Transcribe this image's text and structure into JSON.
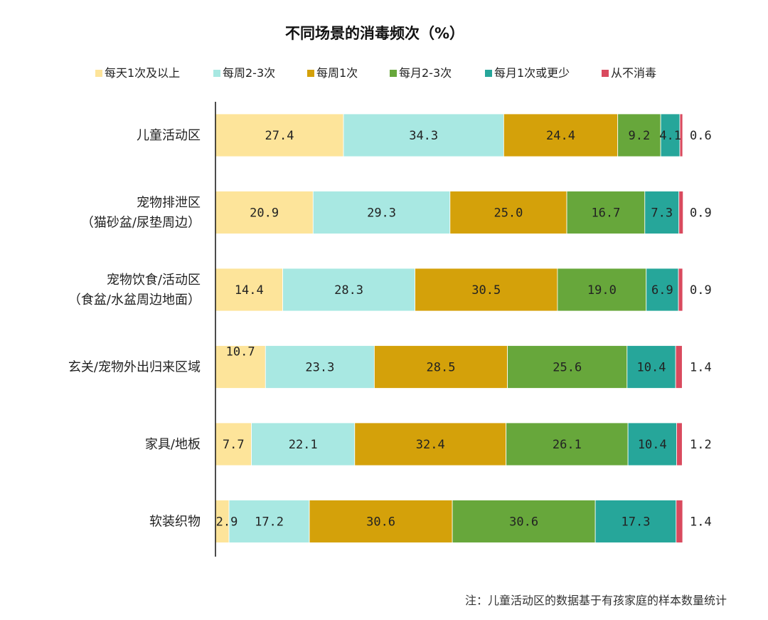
{
  "chart_data": {
    "type": "bar",
    "orientation": "horizontal",
    "stacked": true,
    "title": "不同场景的消毒频次（%）",
    "legend_position": "top",
    "grid": false,
    "xlim": [
      0,
      100
    ],
    "categories": [
      [
        "儿童活动区"
      ],
      [
        "宠物排泄区",
        "（猫砂盆/尿垫周边）"
      ],
      [
        "宠物饮食/活动区",
        "（食盆/水盆周边地面）"
      ],
      [
        "玄关/宠物外出归来区域"
      ],
      [
        "家具/地板"
      ],
      [
        "软装织物"
      ]
    ],
    "series": [
      {
        "name": "每天1次及以上",
        "color": "#FDE49A",
        "values": [
          27.4,
          20.9,
          14.4,
          10.7,
          7.7,
          2.9
        ]
      },
      {
        "name": "每周2-3次",
        "color": "#A8E8E2",
        "values": [
          34.3,
          29.3,
          28.3,
          23.3,
          22.1,
          17.2
        ]
      },
      {
        "name": "每周1次",
        "color": "#D4A10A",
        "values": [
          24.4,
          25.0,
          30.5,
          28.5,
          32.4,
          30.6
        ]
      },
      {
        "name": "每月2-3次",
        "color": "#67A73B",
        "values": [
          9.2,
          16.7,
          19.0,
          25.6,
          26.1,
          30.6
        ]
      },
      {
        "name": "每月1次或更少",
        "color": "#26A69A",
        "values": [
          4.1,
          7.3,
          6.9,
          10.4,
          10.4,
          17.3
        ]
      },
      {
        "name": "从不消毒",
        "color": "#D94A5E",
        "values": [
          0.6,
          0.9,
          0.9,
          1.4,
          1.2,
          1.4
        ]
      }
    ],
    "value_labels": [
      [
        "27.4",
        "34.3",
        "24.4",
        "9.2",
        "4.1",
        "0.6"
      ],
      [
        "20.9",
        "29.3",
        "25.0",
        "16.7",
        "7.3",
        "0.9"
      ],
      [
        "14.4",
        "28.3",
        "30.5",
        "19.0",
        "6.9",
        "0.9"
      ],
      [
        "10.7",
        "23.3",
        "28.5",
        "25.6",
        "10.4",
        "1.4"
      ],
      [
        "7.7",
        "22.1",
        "32.4",
        "26.1",
        "10.4",
        "1.2"
      ],
      [
        "2.9",
        "17.2",
        "30.6",
        "30.6",
        "17.3",
        "1.4"
      ]
    ],
    "note": "注：儿童活动区的数据基于有孩家庭的样本数量统计"
  }
}
